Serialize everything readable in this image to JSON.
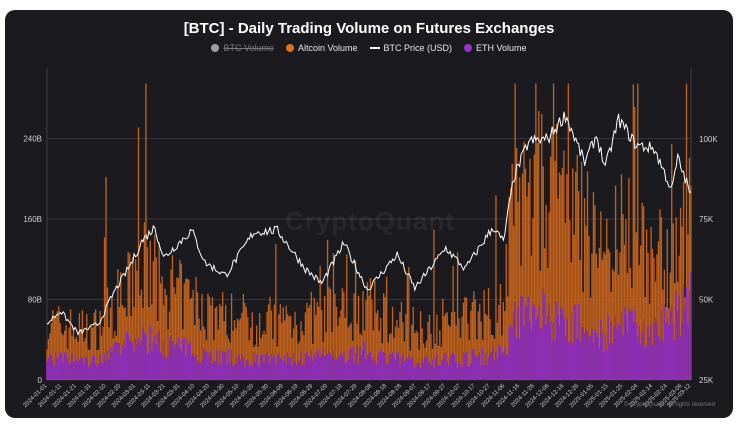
{
  "title": "[BTC] - Daily Trading Volume on Futures Exchanges",
  "watermark": "CryptoQuant",
  "copyright": "© CryptoQuant. All rights reserved",
  "legend": [
    {
      "name": "BTC Volume",
      "color": "#9e9e9e",
      "shape": "dot",
      "hidden": true
    },
    {
      "name": "Altcoin Volume",
      "color": "#e0701f",
      "shape": "dot",
      "hidden": false
    },
    {
      "name": "BTC Price (USD)",
      "color": "#ffffff",
      "shape": "line",
      "hidden": false
    },
    {
      "name": "ETH Volume",
      "color": "#9b2fd0",
      "shape": "dot",
      "hidden": false
    }
  ],
  "chart_data": {
    "type": "bar",
    "title": "[BTC] - Daily Trading Volume on Futures Exchanges",
    "x_range": [
      "2024-01-01",
      "2025-03-12"
    ],
    "x_ticks": [
      "2024-01-01",
      "2024-01-11",
      "2024-01-21",
      "2024-01-31",
      "2024-02-10",
      "2024-02-20",
      "2024-03-01",
      "2024-03-11",
      "2024-03-21",
      "2024-03-31",
      "2024-04-10",
      "2024-04-20",
      "2024-04-30",
      "2024-05-10",
      "2024-05-20",
      "2024-05-30",
      "2024-06-09",
      "2024-06-19",
      "2024-06-29",
      "2024-07-09",
      "2024-07-19",
      "2024-07-29",
      "2024-08-08",
      "2024-08-18",
      "2024-08-28",
      "2024-09-07",
      "2024-09-17",
      "2024-09-27",
      "2024-10-07",
      "2024-10-17",
      "2024-10-27",
      "2024-11-06",
      "2024-11-16",
      "2024-11-26",
      "2024-12-06",
      "2024-12-16",
      "2024-12-26",
      "2025-01-05",
      "2025-01-15",
      "2025-01-25",
      "2025-02-04",
      "2025-02-14",
      "2025-02-24",
      "2025-03-06",
      "2025-03-12"
    ],
    "y_left": {
      "ticks": [
        "0",
        "80B",
        "160B",
        "240B"
      ],
      "values": [
        0,
        80,
        160,
        240
      ],
      "unit": "B",
      "ylim": [
        0,
        310
      ]
    },
    "y_right": {
      "ticks": [
        "25K",
        "50K",
        "75K",
        "100K"
      ],
      "values": [
        25000,
        50000,
        75000,
        100000
      ],
      "ylim": [
        25000,
        122000
      ]
    },
    "grid": true,
    "legend_position": "top-center",
    "series": [
      {
        "name": "Altcoin Volume",
        "kind": "bar",
        "axis": "left",
        "keyframes": [
          [
            "2024-01-01",
            55
          ],
          [
            "2024-02-01",
            48
          ],
          [
            "2024-02-25",
            88
          ],
          [
            "2024-03-05",
            118
          ],
          [
            "2024-03-15",
            98
          ],
          [
            "2024-04-01",
            82
          ],
          [
            "2024-05-01",
            62
          ],
          [
            "2024-06-01",
            58
          ],
          [
            "2024-07-01",
            62
          ],
          [
            "2024-08-05",
            72
          ],
          [
            "2024-09-01",
            52
          ],
          [
            "2024-10-01",
            58
          ],
          [
            "2024-11-05",
            75
          ],
          [
            "2024-11-12",
            175
          ],
          [
            "2024-12-05",
            190
          ],
          [
            "2024-12-20",
            165
          ],
          [
            "2025-01-10",
            130
          ],
          [
            "2025-02-01",
            150
          ],
          [
            "2025-02-10",
            118
          ],
          [
            "2025-03-01",
            132
          ],
          [
            "2025-03-12",
            150
          ]
        ]
      },
      {
        "name": "ETH Volume",
        "kind": "bar",
        "axis": "left",
        "keyframes": [
          [
            "2024-01-01",
            22
          ],
          [
            "2024-02-01",
            18
          ],
          [
            "2024-03-05",
            42
          ],
          [
            "2024-04-01",
            32
          ],
          [
            "2024-05-01",
            22
          ],
          [
            "2024-06-01",
            20
          ],
          [
            "2024-07-01",
            22
          ],
          [
            "2024-08-05",
            28
          ],
          [
            "2024-09-01",
            18
          ],
          [
            "2024-10-01",
            20
          ],
          [
            "2024-11-05",
            26
          ],
          [
            "2024-11-12",
            60
          ],
          [
            "2024-12-05",
            68
          ],
          [
            "2024-12-20",
            58
          ],
          [
            "2025-01-10",
            45
          ],
          [
            "2025-02-01",
            55
          ],
          [
            "2025-02-10",
            45
          ],
          [
            "2025-03-01",
            62
          ],
          [
            "2025-03-12",
            82
          ]
        ]
      },
      {
        "name": "BTC Price (USD)",
        "kind": "line",
        "axis": "right",
        "keyframes": [
          [
            "2024-01-01",
            42500
          ],
          [
            "2024-01-10",
            46500
          ],
          [
            "2024-01-22",
            39500
          ],
          [
            "2024-02-05",
            42500
          ],
          [
            "2024-02-15",
            52000
          ],
          [
            "2024-02-28",
            62000
          ],
          [
            "2024-03-05",
            68000
          ],
          [
            "2024-03-14",
            72500
          ],
          [
            "2024-03-20",
            63000
          ],
          [
            "2024-04-08",
            71500
          ],
          [
            "2024-04-17",
            61500
          ],
          [
            "2024-05-01",
            57500
          ],
          [
            "2024-05-20",
            71000
          ],
          [
            "2024-06-05",
            71500
          ],
          [
            "2024-06-24",
            59500
          ],
          [
            "2024-07-05",
            55000
          ],
          [
            "2024-07-20",
            67500
          ],
          [
            "2024-08-05",
            53000
          ],
          [
            "2024-08-25",
            64000
          ],
          [
            "2024-09-06",
            53500
          ],
          [
            "2024-09-27",
            66000
          ],
          [
            "2024-10-10",
            59500
          ],
          [
            "2024-10-29",
            72500
          ],
          [
            "2024-11-05",
            68000
          ],
          [
            "2024-11-12",
            88000
          ],
          [
            "2024-11-22",
            99000
          ],
          [
            "2024-12-05",
            100000
          ],
          [
            "2024-12-17",
            107500
          ],
          [
            "2024-12-30",
            92500
          ],
          [
            "2025-01-07",
            101000
          ],
          [
            "2025-01-13",
            91000
          ],
          [
            "2025-01-22",
            106000
          ],
          [
            "2025-02-03",
            98000
          ],
          [
            "2025-02-15",
            97000
          ],
          [
            "2025-02-27",
            84000
          ],
          [
            "2025-03-03",
            94000
          ],
          [
            "2025-03-12",
            82500
          ]
        ]
      }
    ]
  }
}
